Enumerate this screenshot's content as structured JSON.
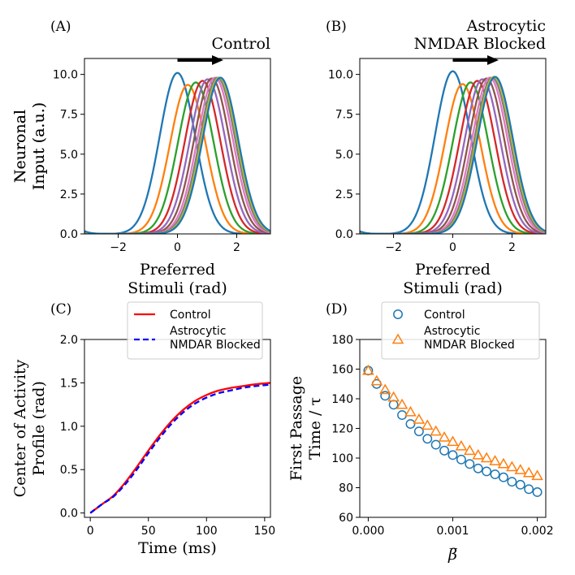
{
  "chart_data": [
    {
      "type": "line",
      "panel": "(A)",
      "title": "Control",
      "xlabel": "Preferred\nStimuli (rad)",
      "ylabel": "Neuronal\nInput (a.u.)",
      "xlim": [
        -3.14,
        3.14
      ],
      "ylim": [
        0,
        11
      ],
      "xticks": [
        -2,
        0,
        2
      ],
      "xtick_labels": [
        "−2",
        "0",
        "2"
      ],
      "yticks": [
        0,
        2.5,
        5,
        7.5,
        10
      ],
      "ytick_labels": [
        "0.0",
        "2.5",
        "5.0",
        "7.5",
        "10.0"
      ],
      "annotation": "arrow pointing right above peaks",
      "series": [
        {
          "name": "c1",
          "color": "#1f77b4",
          "center": 0.0,
          "amplitude": 10.1,
          "width": 0.6
        },
        {
          "name": "c2",
          "color": "#ff7f0e",
          "center": 0.35,
          "amplitude": 9.35,
          "width": 0.6
        },
        {
          "name": "c3",
          "color": "#2ca02c",
          "center": 0.62,
          "amplitude": 9.5,
          "width": 0.6
        },
        {
          "name": "c4",
          "color": "#d62728",
          "center": 0.85,
          "amplitude": 9.6,
          "width": 0.6
        },
        {
          "name": "c5",
          "color": "#9467bd",
          "center": 1.02,
          "amplitude": 9.7,
          "width": 0.6
        },
        {
          "name": "c6",
          "color": "#8c564b",
          "center": 1.16,
          "amplitude": 9.75,
          "width": 0.6
        },
        {
          "name": "c7",
          "color": "#e377c2",
          "center": 1.27,
          "amplitude": 9.8,
          "width": 0.6
        },
        {
          "name": "c8",
          "color": "#7f7f7f",
          "center": 1.35,
          "amplitude": 9.8,
          "width": 0.6
        },
        {
          "name": "c9",
          "color": "#bcbd22",
          "center": 1.41,
          "amplitude": 9.8,
          "width": 0.6
        },
        {
          "name": "c10",
          "color": "#1f77b4",
          "center": 1.45,
          "amplitude": 9.8,
          "width": 0.6
        }
      ]
    },
    {
      "type": "line",
      "panel": "(B)",
      "title": "Astrocytic\nNMDAR Blocked",
      "xlabel": "Preferred\nStimuli (rad)",
      "ylabel": "Neuronal\nInput (a.u.)",
      "xlim": [
        -3.14,
        3.14
      ],
      "ylim": [
        0,
        11
      ],
      "xticks": [
        -2,
        0,
        2
      ],
      "xtick_labels": [
        "−2",
        "0",
        "2"
      ],
      "yticks": [
        0,
        2.5,
        5,
        7.5,
        10
      ],
      "ytick_labels": [
        "0.0",
        "2.5",
        "5.0",
        "7.5",
        "10.0"
      ],
      "annotation": "arrow pointing right above peaks",
      "series": [
        {
          "name": "c1",
          "color": "#1f77b4",
          "center": 0.0,
          "amplitude": 10.2,
          "width": 0.6
        },
        {
          "name": "c2",
          "color": "#ff7f0e",
          "center": 0.33,
          "amplitude": 9.4,
          "width": 0.6
        },
        {
          "name": "c3",
          "color": "#2ca02c",
          "center": 0.6,
          "amplitude": 9.5,
          "width": 0.6
        },
        {
          "name": "c4",
          "color": "#d62728",
          "center": 0.83,
          "amplitude": 9.6,
          "width": 0.6
        },
        {
          "name": "c5",
          "color": "#9467bd",
          "center": 1.0,
          "amplitude": 9.7,
          "width": 0.6
        },
        {
          "name": "c6",
          "color": "#8c564b",
          "center": 1.14,
          "amplitude": 9.75,
          "width": 0.6
        },
        {
          "name": "c7",
          "color": "#e377c2",
          "center": 1.25,
          "amplitude": 9.8,
          "width": 0.6
        },
        {
          "name": "c8",
          "color": "#7f7f7f",
          "center": 1.33,
          "amplitude": 9.8,
          "width": 0.6
        },
        {
          "name": "c9",
          "color": "#bcbd22",
          "center": 1.39,
          "amplitude": 9.85,
          "width": 0.6
        },
        {
          "name": "c10",
          "color": "#1f77b4",
          "center": 1.43,
          "amplitude": 9.85,
          "width": 0.6
        }
      ]
    },
    {
      "type": "line",
      "panel": "(C)",
      "xlabel": "Time (ms)",
      "ylabel": "Center of Activity\nProfile (rad)",
      "xlim": [
        -5,
        155
      ],
      "ylim": [
        -0.05,
        2.0
      ],
      "xticks": [
        0,
        50,
        100,
        150
      ],
      "xtick_labels": [
        "0",
        "50",
        "100",
        "150"
      ],
      "yticks": [
        0,
        0.5,
        1.0,
        1.5,
        2.0
      ],
      "ytick_labels": [
        "0.0",
        "0.5",
        "1.0",
        "1.5",
        "2.0"
      ],
      "legend": "top-left",
      "series": [
        {
          "name": "Control",
          "color": "#ff0000",
          "dash": "solid",
          "x": [
            0,
            10,
            20,
            30,
            40,
            50,
            60,
            70,
            80,
            90,
            100,
            110,
            120,
            130,
            140,
            155
          ],
          "y": [
            0.0,
            0.1,
            0.2,
            0.35,
            0.53,
            0.72,
            0.9,
            1.06,
            1.19,
            1.29,
            1.36,
            1.41,
            1.44,
            1.46,
            1.48,
            1.5
          ]
        },
        {
          "name": "Astrocytic\nNMDAR Blocked",
          "color": "#0000ff",
          "dash": "dashed",
          "x": [
            0,
            10,
            20,
            30,
            40,
            50,
            60,
            70,
            80,
            90,
            100,
            110,
            120,
            130,
            140,
            155
          ],
          "y": [
            0.0,
            0.1,
            0.19,
            0.33,
            0.5,
            0.69,
            0.87,
            1.03,
            1.16,
            1.26,
            1.33,
            1.38,
            1.41,
            1.44,
            1.46,
            1.48
          ]
        }
      ]
    },
    {
      "type": "scatter",
      "panel": "(D)",
      "xlabel": "β̅",
      "ylabel": "First Passage\nTime / τ",
      "xlim": [
        -0.0001,
        0.0021
      ],
      "ylim": [
        60,
        180
      ],
      "xticks": [
        0,
        0.001,
        0.002
      ],
      "xtick_labels": [
        "0.000",
        "0.001",
        "0.002"
      ],
      "yticks": [
        60,
        80,
        100,
        120,
        140,
        160,
        180
      ],
      "ytick_labels": [
        "60",
        "80",
        "100",
        "120",
        "140",
        "160",
        "180"
      ],
      "legend": "top-left",
      "series": [
        {
          "name": "Control",
          "color": "#1f77b4",
          "marker": "circle",
          "x": [
            0,
            0.0001,
            0.0002,
            0.0003,
            0.0004,
            0.0005,
            0.0006,
            0.0007,
            0.0008,
            0.0009,
            0.001,
            0.0011,
            0.0012,
            0.0013,
            0.0014,
            0.0015,
            0.0016,
            0.0017,
            0.0018,
            0.0019,
            0.002
          ],
          "y": [
            159,
            150,
            142,
            136,
            129,
            123,
            118,
            113,
            109,
            105,
            102,
            99,
            96,
            93,
            91,
            89,
            87,
            84,
            82,
            79,
            77
          ]
        },
        {
          "name": "Astrocytic\nNMDAR Blocked",
          "color": "#ff7f0e",
          "marker": "triangle",
          "x": [
            0,
            0.0001,
            0.0002,
            0.0003,
            0.0004,
            0.0005,
            0.0006,
            0.0007,
            0.0008,
            0.0009,
            0.001,
            0.0011,
            0.0012,
            0.0013,
            0.0014,
            0.0015,
            0.0016,
            0.0017,
            0.0018,
            0.0019,
            0.002
          ],
          "y": [
            159,
            152,
            146,
            141,
            136,
            131,
            126,
            122,
            118,
            114,
            111,
            108,
            105,
            102,
            100,
            98,
            96,
            94,
            92,
            90,
            88
          ]
        }
      ]
    }
  ]
}
